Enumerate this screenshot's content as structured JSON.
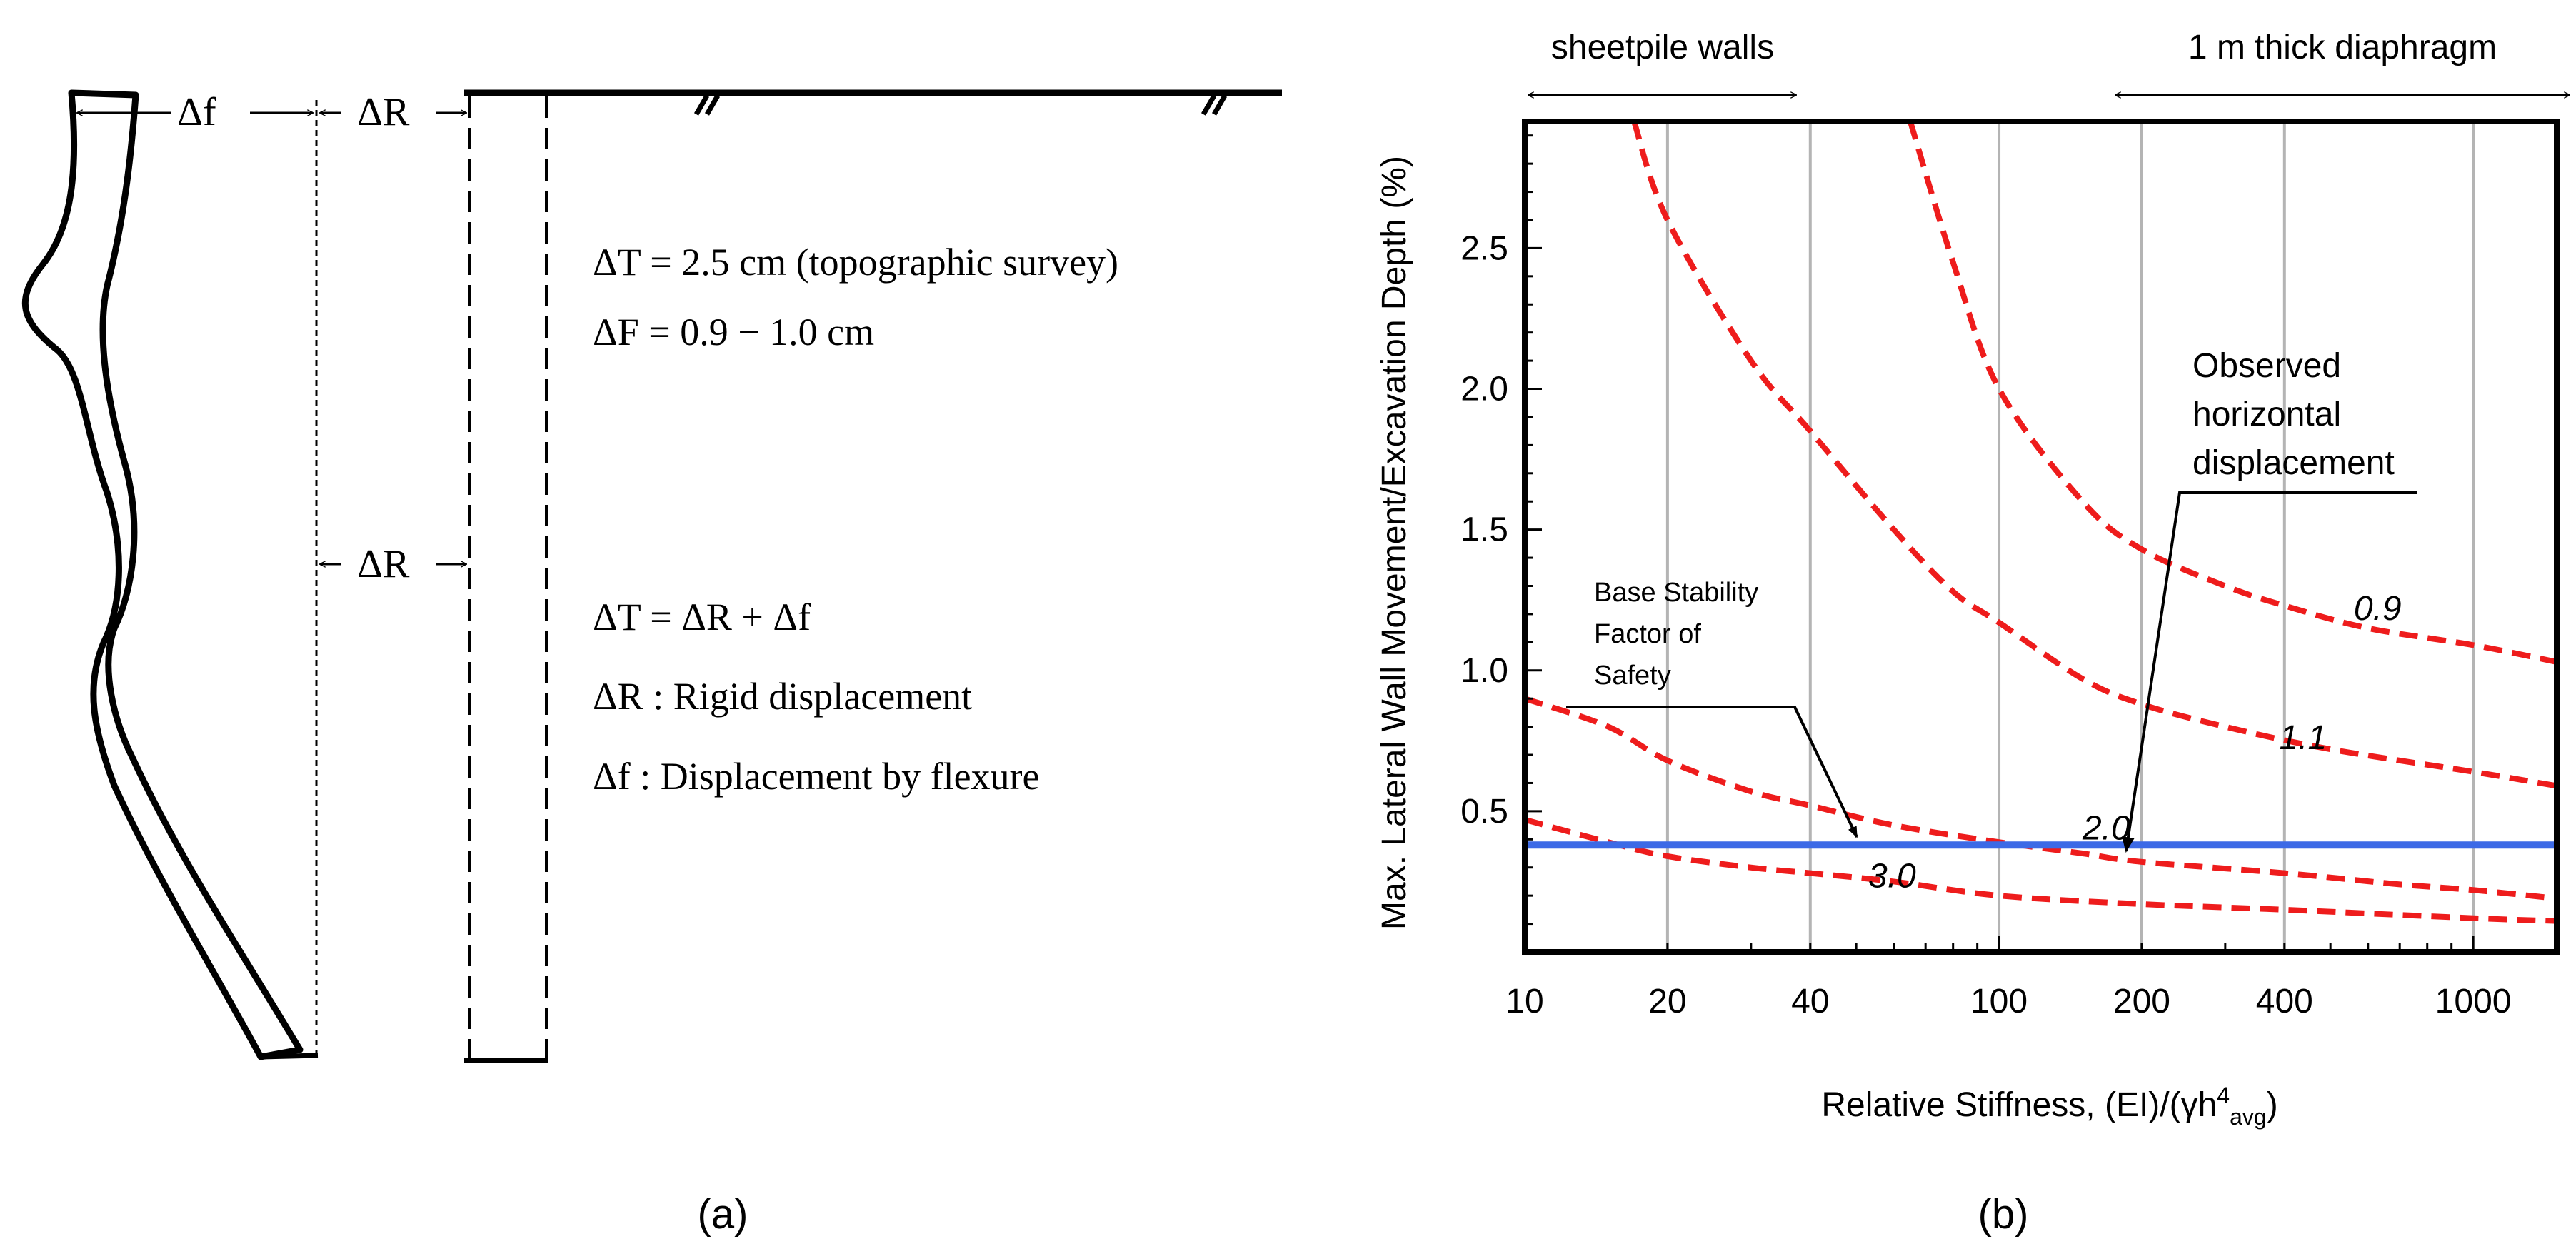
{
  "panel_a": {
    "caption": "(a)",
    "label_df": "Δf",
    "label_dr_top": "ΔR",
    "label_dr_mid": "ΔR",
    "eq1": "ΔT = 2.5  cm (topographic survey)",
    "eq2": "ΔF = 0.9 − 1.0  cm",
    "eq3": "ΔT = ΔR + Δf",
    "eq4": "ΔR :  Rigid displacement",
    "eq5": "Δf :  Displacement by flexure"
  },
  "panel_b": {
    "caption": "(b)",
    "range_left": "sheetpile walls",
    "range_right": "1 m thick diaphragm",
    "annotation_observed": [
      "Observed",
      "horizontal",
      "displacement"
    ],
    "annotation_fs": [
      "Base Stability",
      "Factor of",
      "Safety"
    ]
  },
  "chart_data": {
    "type": "line",
    "xlabel": "Relative Stiffness, (EI)/(γh4avg)",
    "ylabel": "Max. Lateral Wall Movement/Excavation Depth (%)",
    "xscale": "log",
    "xlim": [
      10,
      1500
    ],
    "ylim": [
      0,
      2.95
    ],
    "xticks": [
      10,
      20,
      40,
      100,
      200,
      400,
      1000
    ],
    "xtick_labels": [
      "10",
      "20",
      "40",
      "100",
      "200",
      "400",
      "1000"
    ],
    "yticks": [
      0.5,
      1.0,
      1.5,
      2.0,
      2.5
    ],
    "ytick_labels": [
      "0.5",
      "1.0",
      "1.5",
      "2.0",
      "2.5"
    ],
    "grid": "vertical lines at x ticks",
    "series": [
      {
        "name": "0.9",
        "style": "dashed",
        "color": "#ee1c1c",
        "points": [
          [
            65,
            2.95
          ],
          [
            80,
            2.45
          ],
          [
            100,
            2.0
          ],
          [
            150,
            1.6
          ],
          [
            200,
            1.43
          ],
          [
            300,
            1.3
          ],
          [
            400,
            1.23
          ],
          [
            600,
            1.15
          ],
          [
            1000,
            1.09
          ],
          [
            1500,
            1.03
          ]
        ]
      },
      {
        "name": "1.1",
        "style": "dashed",
        "color": "#ee1c1c",
        "points": [
          [
            17,
            2.95
          ],
          [
            20,
            2.6
          ],
          [
            30,
            2.1
          ],
          [
            40,
            1.85
          ],
          [
            60,
            1.5
          ],
          [
            80,
            1.28
          ],
          [
            100,
            1.17
          ],
          [
            150,
            0.97
          ],
          [
            200,
            0.88
          ],
          [
            300,
            0.8
          ],
          [
            500,
            0.72
          ],
          [
            1000,
            0.64
          ],
          [
            1500,
            0.59
          ]
        ]
      },
      {
        "name": "2.0",
        "style": "dashed",
        "color": "#ee1c1c",
        "points": [
          [
            10,
            0.9
          ],
          [
            15,
            0.8
          ],
          [
            20,
            0.68
          ],
          [
            30,
            0.57
          ],
          [
            40,
            0.52
          ],
          [
            60,
            0.45
          ],
          [
            100,
            0.39
          ],
          [
            150,
            0.35
          ],
          [
            200,
            0.32
          ],
          [
            400,
            0.28
          ],
          [
            700,
            0.24
          ],
          [
            1000,
            0.22
          ],
          [
            1500,
            0.19
          ]
        ]
      },
      {
        "name": "3.0",
        "style": "dashed",
        "color": "#ee1c1c",
        "points": [
          [
            10,
            0.47
          ],
          [
            15,
            0.39
          ],
          [
            20,
            0.34
          ],
          [
            30,
            0.3
          ],
          [
            40,
            0.28
          ],
          [
            60,
            0.25
          ],
          [
            100,
            0.2
          ],
          [
            200,
            0.17
          ],
          [
            400,
            0.15
          ],
          [
            1000,
            0.12
          ],
          [
            1500,
            0.11
          ]
        ]
      },
      {
        "name": "Observed horizontal displacement",
        "style": "solid",
        "color": "#3c6ae6",
        "points": [
          [
            10,
            0.38
          ],
          [
            1500,
            0.38
          ]
        ]
      }
    ],
    "curve_labels": [
      {
        "text": "0.9",
        "x": 560,
        "y": 1.18
      },
      {
        "text": "1.1",
        "x": 390,
        "y": 0.72
      },
      {
        "text": "2.0",
        "x": 150,
        "y": 0.4
      },
      {
        "text": "3.0",
        "x": 53,
        "y": 0.23
      }
    ]
  }
}
